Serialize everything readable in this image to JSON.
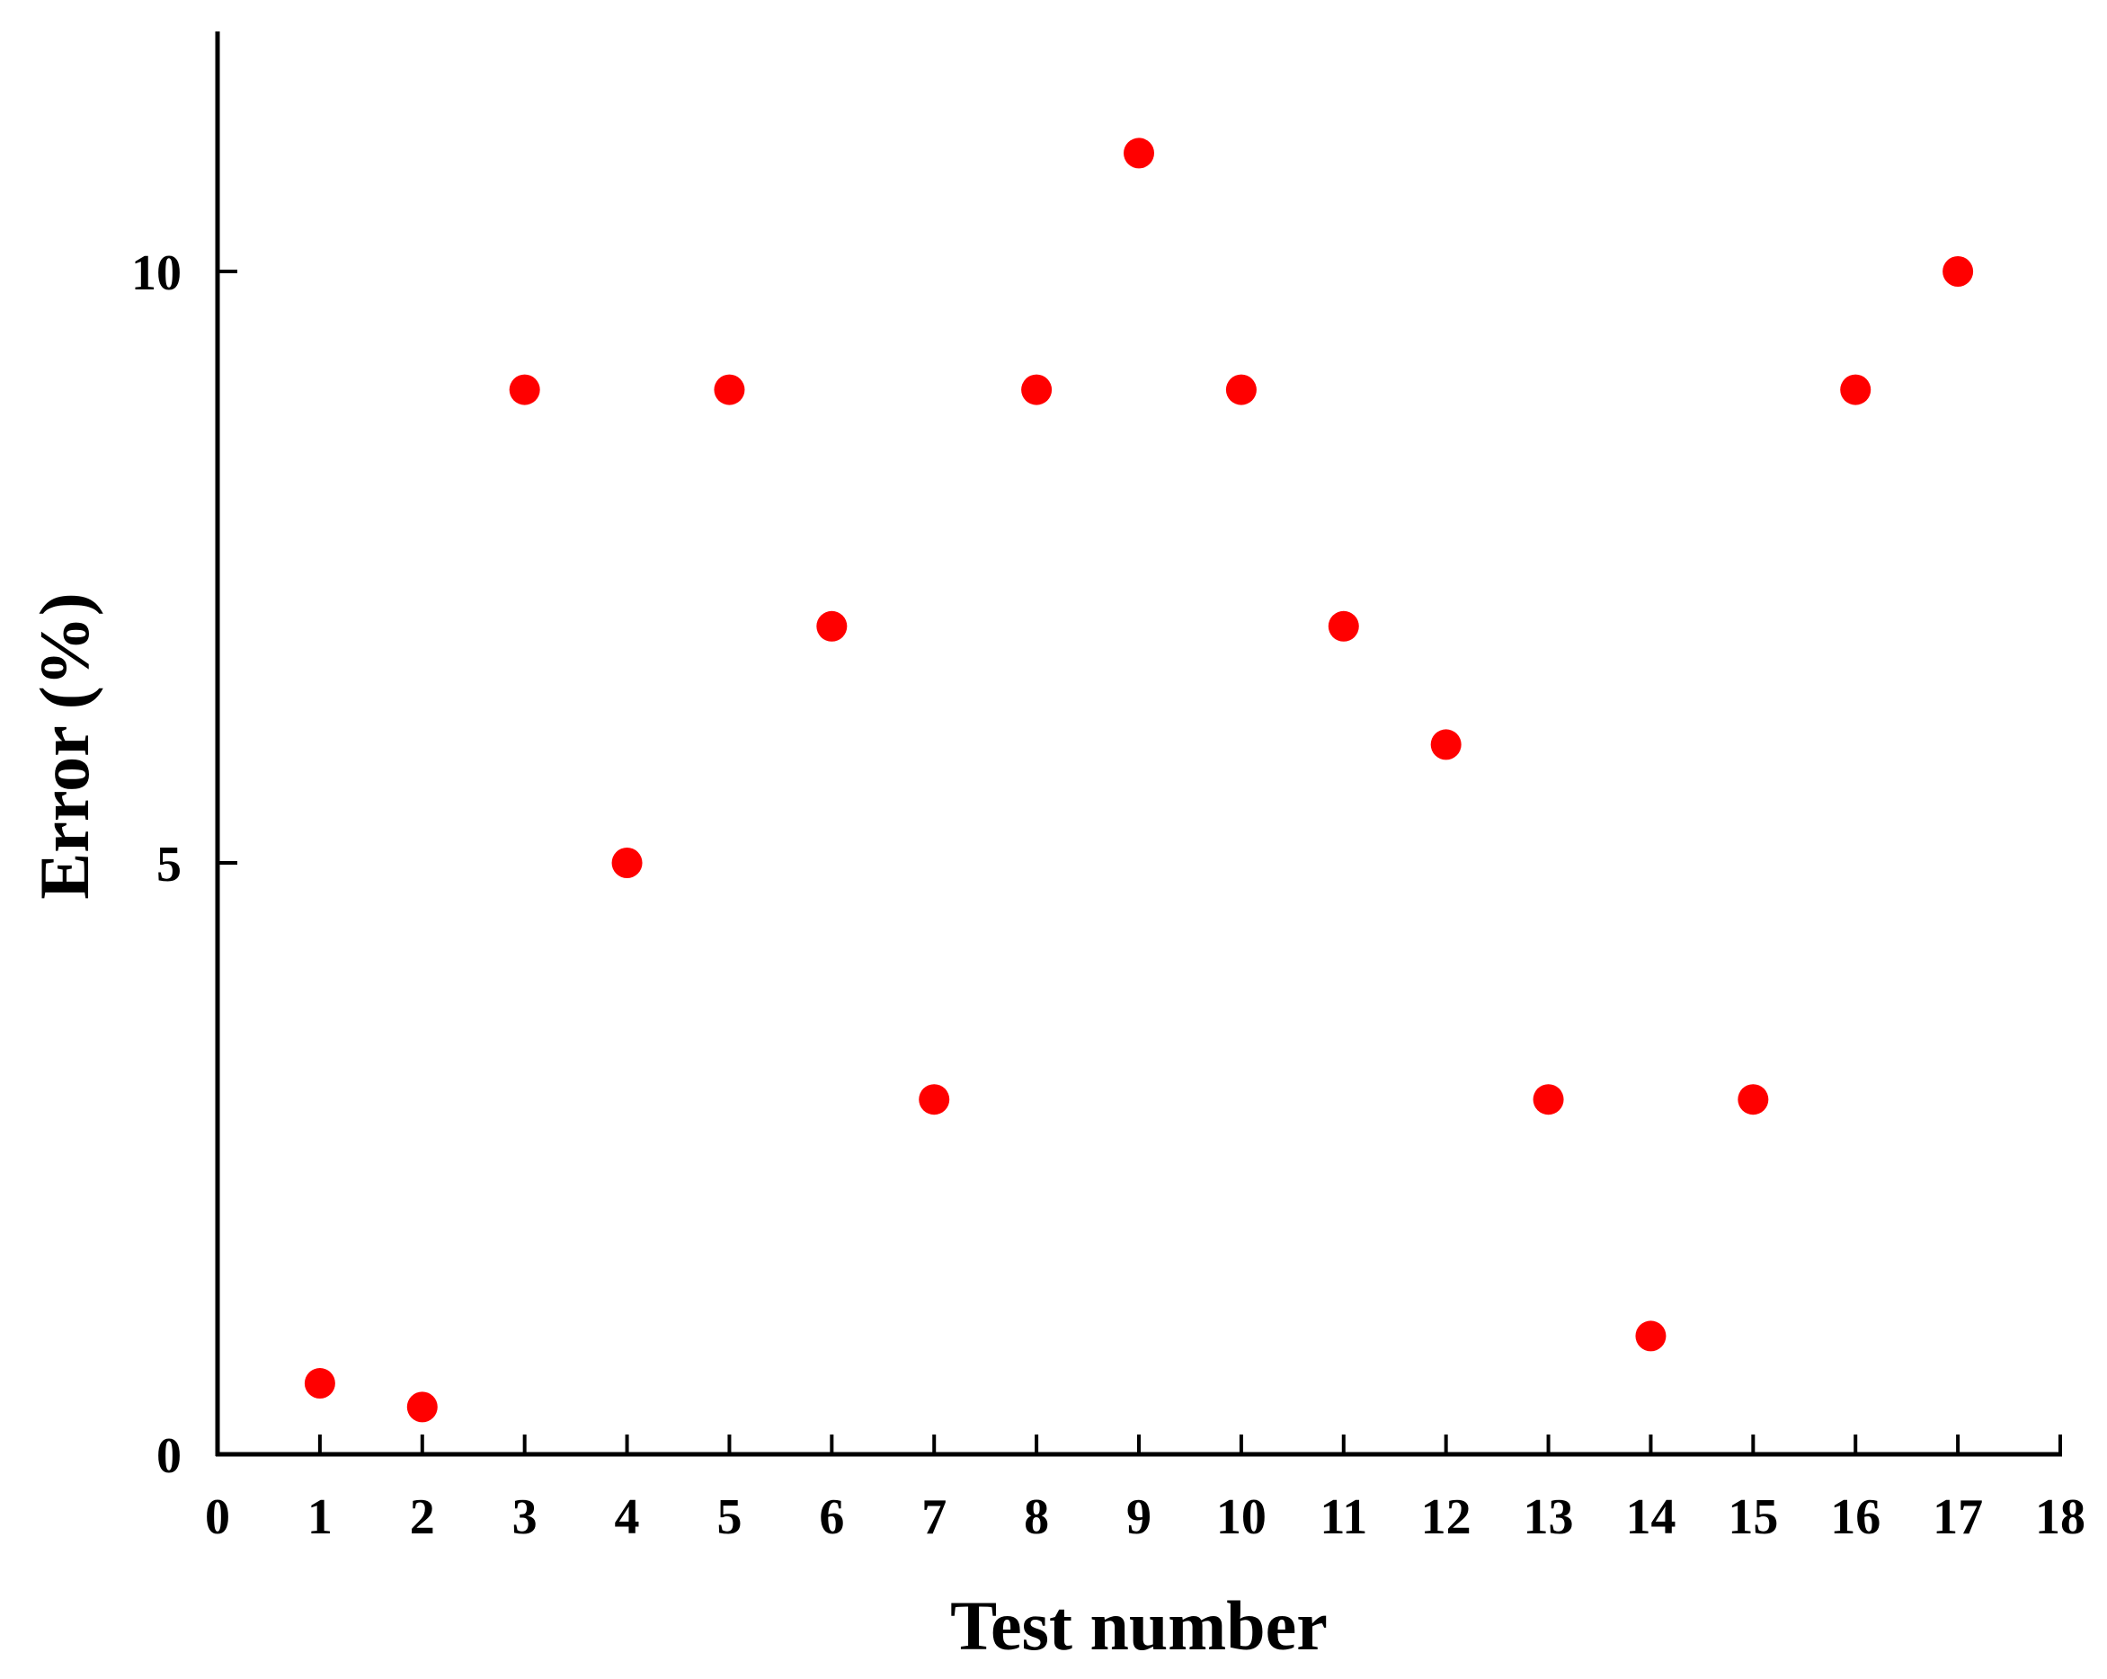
{
  "chart_data": {
    "type": "scatter",
    "title": "",
    "xlabel": "Test number",
    "ylabel": "Error (%)",
    "xlim": [
      0,
      18
    ],
    "ylim": [
      0,
      12
    ],
    "x_ticks": [
      0,
      1,
      2,
      3,
      4,
      5,
      6,
      7,
      8,
      9,
      10,
      11,
      12,
      13,
      14,
      15,
      16,
      17,
      18
    ],
    "x_tick_labels": [
      "0",
      "1",
      "2",
      "3",
      "4",
      "5",
      "6",
      "7",
      "8",
      "9",
      "10",
      "11",
      "12",
      "13",
      "14",
      "15",
      "16",
      "17",
      "18"
    ],
    "y_ticks": [
      0,
      5,
      10
    ],
    "y_tick_labels": [
      "0",
      "5",
      "10"
    ],
    "grid": false,
    "legend": "none",
    "marker_color": "#ff0000",
    "axis_color": "#000000",
    "series": [
      {
        "x": [
          1,
          2,
          3,
          4,
          5,
          6,
          7,
          8,
          9,
          10,
          11,
          12,
          13,
          14,
          15,
          16,
          17
        ],
        "y": [
          0.6,
          0.4,
          9,
          5,
          9,
          7,
          3,
          9,
          11,
          9,
          7,
          6,
          3,
          1,
          3,
          9,
          10
        ]
      }
    ]
  }
}
